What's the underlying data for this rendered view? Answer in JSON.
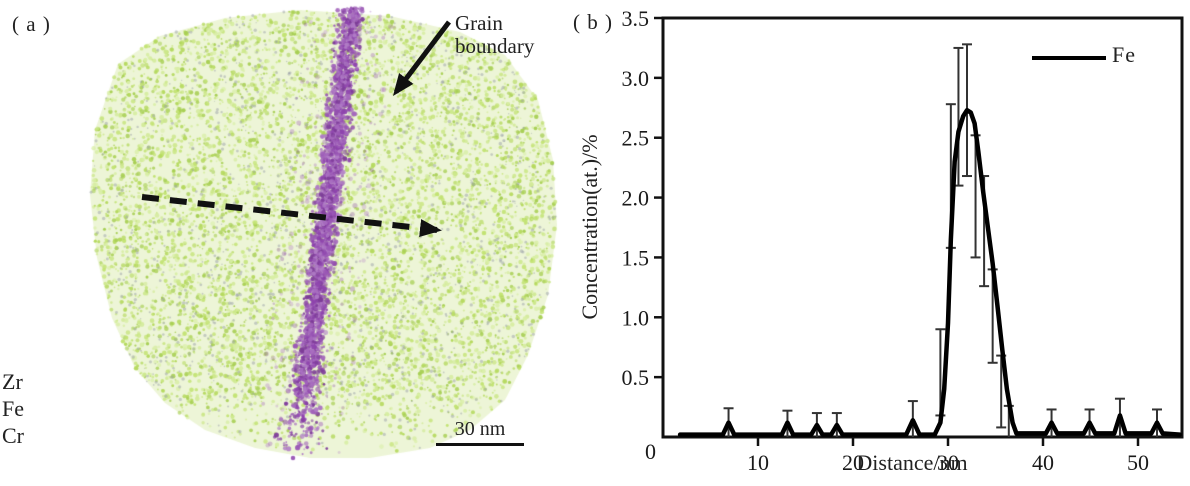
{
  "panel_a": {
    "label": "( a )",
    "annotation": {
      "line1": "Grain",
      "line2": "boundary"
    },
    "elements": [
      "Zr",
      "Fe",
      "Cr"
    ],
    "scale_bar_label": "30 nm",
    "colors": {
      "matrix_green": "#c3e374",
      "grain_boundary_purple": "#9b59b6",
      "noise_gray": "#9aa0a8",
      "arrow_black": "#111111"
    }
  },
  "panel_b": {
    "label": "( b )"
  },
  "chart_data": {
    "type": "line",
    "title": "",
    "xlabel": "Distance/nm",
    "ylabel": "Concentration(at.)/%",
    "xlim": [
      0,
      54.6
    ],
    "ylim": [
      0,
      3.5
    ],
    "xticks": [
      10,
      20,
      30,
      40,
      50
    ],
    "xtick_labels": [
      "10",
      "20",
      "30",
      "40",
      "50"
    ],
    "yticks": [
      0,
      0.5,
      1,
      1.5,
      2,
      2.5,
      3,
      3.5
    ],
    "ytick_labels": [
      "0",
      "0.5",
      "1.0",
      "1.5",
      "2.0",
      "2.5",
      "3.0",
      "3.5"
    ],
    "grid": false,
    "legend": {
      "position": "top-right",
      "entries": [
        {
          "label": "Fe",
          "color": "#000000"
        }
      ]
    },
    "series": [
      {
        "name": "Fe",
        "color": "#000000",
        "points": [
          [
            1.8,
            0.02
          ],
          [
            6.3,
            0.02
          ],
          [
            6.9,
            0.12
          ],
          [
            7.5,
            0.02
          ],
          [
            12.5,
            0.02
          ],
          [
            13.1,
            0.12
          ],
          [
            13.7,
            0.02
          ],
          [
            15.6,
            0.02
          ],
          [
            16.2,
            0.1
          ],
          [
            16.8,
            0.02
          ],
          [
            17.7,
            0.02
          ],
          [
            18.3,
            0.1
          ],
          [
            18.9,
            0.02
          ],
          [
            25.6,
            0.02
          ],
          [
            26.3,
            0.14
          ],
          [
            27.0,
            0.02
          ],
          [
            28.6,
            0.02
          ],
          [
            29.2,
            0.12
          ],
          [
            29.6,
            0.4
          ],
          [
            30.0,
            0.95
          ],
          [
            30.3,
            1.65
          ],
          [
            30.7,
            2.3
          ],
          [
            31.1,
            2.55
          ],
          [
            31.6,
            2.68
          ],
          [
            32.0,
            2.73
          ],
          [
            32.4,
            2.71
          ],
          [
            32.8,
            2.62
          ],
          [
            33.2,
            2.38
          ],
          [
            33.7,
            2.05
          ],
          [
            34.2,
            1.75
          ],
          [
            34.7,
            1.45
          ],
          [
            35.2,
            1.1
          ],
          [
            35.7,
            0.74
          ],
          [
            36.2,
            0.4
          ],
          [
            36.8,
            0.12
          ],
          [
            37.2,
            0.03
          ],
          [
            40.3,
            0.03
          ],
          [
            40.9,
            0.12
          ],
          [
            41.5,
            0.03
          ],
          [
            44.3,
            0.03
          ],
          [
            44.9,
            0.12
          ],
          [
            45.5,
            0.03
          ],
          [
            47.5,
            0.03
          ],
          [
            48.1,
            0.18
          ],
          [
            48.7,
            0.03
          ],
          [
            51.4,
            0.03
          ],
          [
            52.0,
            0.12
          ],
          [
            52.6,
            0.03
          ],
          [
            54.4,
            0.02
          ]
        ]
      }
    ],
    "error_bars": {
      "color": "#333333",
      "items": [
        [
          6.9,
          0.24,
          0.0
        ],
        [
          13.1,
          0.22,
          0.0
        ],
        [
          16.2,
          0.2,
          0.0
        ],
        [
          18.3,
          0.2,
          0.0
        ],
        [
          26.3,
          0.3,
          0.0
        ],
        [
          29.2,
          0.9,
          0.18
        ],
        [
          30.3,
          2.78,
          1.58
        ],
        [
          31.1,
          3.25,
          2.1
        ],
        [
          32.0,
          3.28,
          2.18
        ],
        [
          32.9,
          2.52,
          1.5
        ],
        [
          33.8,
          2.18,
          1.26
        ],
        [
          34.7,
          1.4,
          0.62
        ],
        [
          35.6,
          0.68,
          0.08
        ],
        [
          36.4,
          0.26,
          0.0
        ],
        [
          40.9,
          0.23,
          0.0
        ],
        [
          44.9,
          0.23,
          0.0
        ],
        [
          48.1,
          0.32,
          0.0
        ],
        [
          52.0,
          0.23,
          0.0
        ]
      ]
    }
  }
}
